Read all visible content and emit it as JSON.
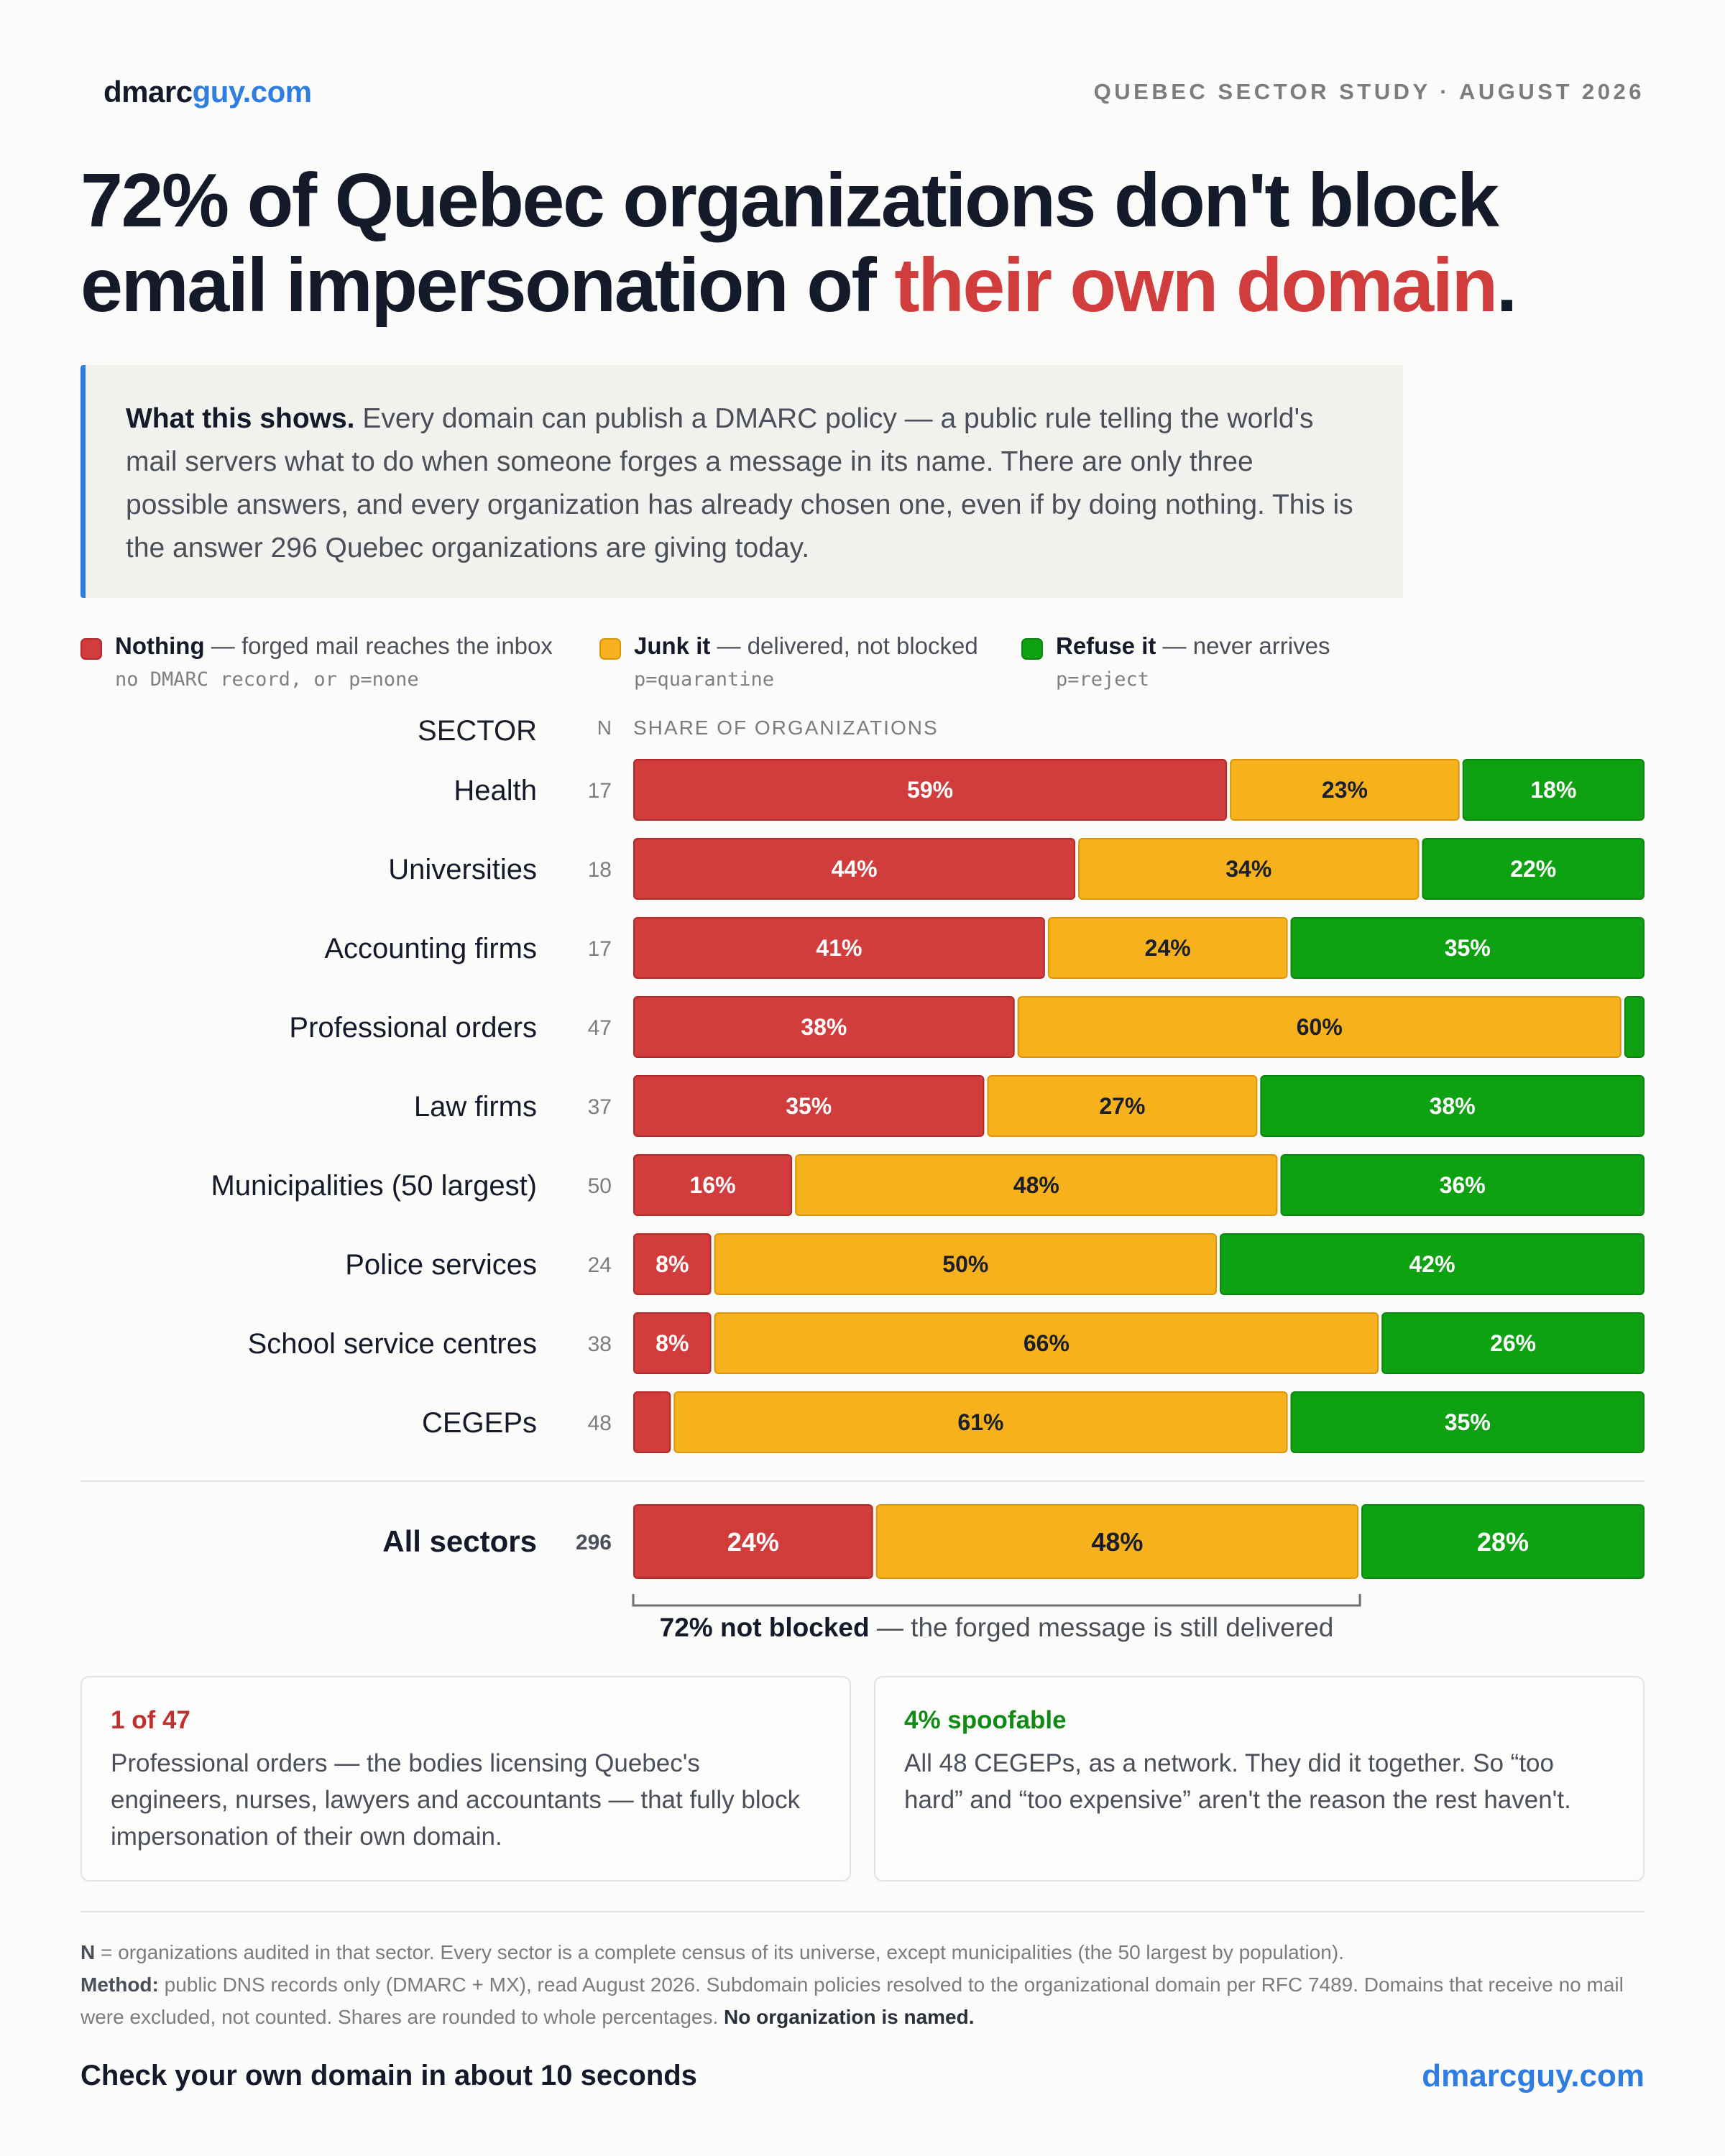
{
  "header": {
    "brand_main": "dmarc",
    "brand_accent": "guy.com",
    "study_label": "QUEBEC SECTOR STUDY · AUGUST 2026"
  },
  "headline": {
    "line1": "72% of Quebec organizations don't block",
    "line2_start": "email impersonation of ",
    "line2_highlight": "their own domain",
    "line2_end": "."
  },
  "callout": {
    "lead": "What this shows.",
    "body": " Every domain can publish a DMARC policy — a public rule telling the world's mail servers what to do when someone forges a message in its name. There are only three possible answers, and every organization has already chosen one, even if by doing nothing. This is the answer 296 Quebec organizations are giving today."
  },
  "legend": [
    {
      "label": "Nothing",
      "desc": " — forged mail reaches the inbox",
      "sub": "no DMARC record, or p=none",
      "color": "#d13c3c"
    },
    {
      "label": "Junk it",
      "desc": " — delivered, not blocked",
      "sub": "p=quarantine",
      "color": "#f7b11c"
    },
    {
      "label": "Refuse it",
      "desc": " — never arrives",
      "sub": "p=reject",
      "color": "#0ea112"
    }
  ],
  "chart_data": {
    "type": "bar",
    "orientation": "horizontal-stacked-100",
    "column_headers": {
      "sector": "SECTOR",
      "n": "N",
      "share": "SHARE OF ORGANIZATIONS"
    },
    "series_colors": [
      "#d13c3c",
      "#f7b11c",
      "#0ea112"
    ],
    "rows": [
      {
        "sector": "Health",
        "n": "17",
        "values": [
          59,
          23,
          18
        ]
      },
      {
        "sector": "Universities",
        "n": "18",
        "values": [
          44,
          34,
          22
        ]
      },
      {
        "sector": "Accounting firms",
        "n": "17",
        "values": [
          41,
          24,
          35
        ]
      },
      {
        "sector": "Professional orders",
        "n": "47",
        "values": [
          38,
          60,
          2
        ]
      },
      {
        "sector": "Law firms",
        "n": "37",
        "values": [
          35,
          27,
          38
        ]
      },
      {
        "sector": "Municipalities (50 largest)",
        "n": "50",
        "values": [
          16,
          48,
          36
        ]
      },
      {
        "sector": "Police services",
        "n": "24",
        "values": [
          8,
          50,
          42
        ]
      },
      {
        "sector": "School service centres",
        "n": "38",
        "values": [
          8,
          66,
          26
        ]
      },
      {
        "sector": "CEGEPs",
        "n": "48",
        "values": [
          4,
          61,
          35
        ]
      }
    ],
    "total": {
      "sector": "All sectors",
      "n": "296",
      "values": [
        24,
        48,
        28
      ]
    },
    "annotation_bold": "72% not blocked",
    "annotation_rest": " — the forged message is still delivered"
  },
  "cards": [
    {
      "kicker": "1 of 47",
      "kicker_color": "#c0302f",
      "text": "Professional orders — the bodies licensing Quebec's engineers, nurses, lawyers and accountants — that fully block impersonation of their own domain."
    },
    {
      "kicker": "4% spoofable",
      "kicker_color": "#128a16",
      "text": "All 48 CEGEPs, as a network. They did it together. So “too hard” and “too expensive” aren't the reason the rest haven't."
    }
  ],
  "notes": {
    "n_label": "N",
    "n_text": " = organizations audited in that sector. Every sector is a complete census of its universe, except municipalities (the 50 largest by population).",
    "method_label": "Method:",
    "method_text": " public DNS records only (DMARC + MX), read August 2026. Subdomain policies resolved to the organizational domain per RFC 7489. Domains that receive no mail were excluded, not counted. Shares are rounded to whole percentages. ",
    "closing": "No organization is named."
  },
  "footer": {
    "cta": "Check your own domain in about 10 seconds",
    "url": "dmarcguy.com"
  }
}
